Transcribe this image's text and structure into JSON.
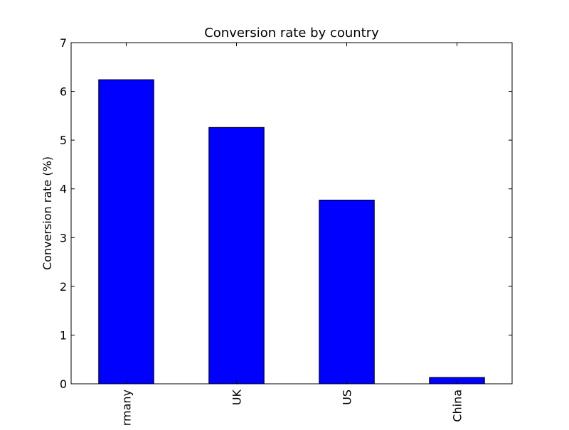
{
  "chart_data": {
    "type": "bar",
    "title": "Conversion rate by country",
    "xlabel": "",
    "ylabel": "Conversion rate (%)",
    "categories": [
      "Germany",
      "UK",
      "US",
      "China"
    ],
    "tick_labels": [
      "rmany",
      "UK",
      "US",
      "China"
    ],
    "values": [
      6.24,
      5.26,
      3.77,
      0.13
    ],
    "ylim": [
      0,
      7
    ],
    "yticks": [
      0,
      1,
      2,
      3,
      4,
      5,
      6,
      7
    ],
    "grid": false,
    "legend": "none",
    "bar_color": "#0000ff",
    "edge_color": "#000000"
  }
}
